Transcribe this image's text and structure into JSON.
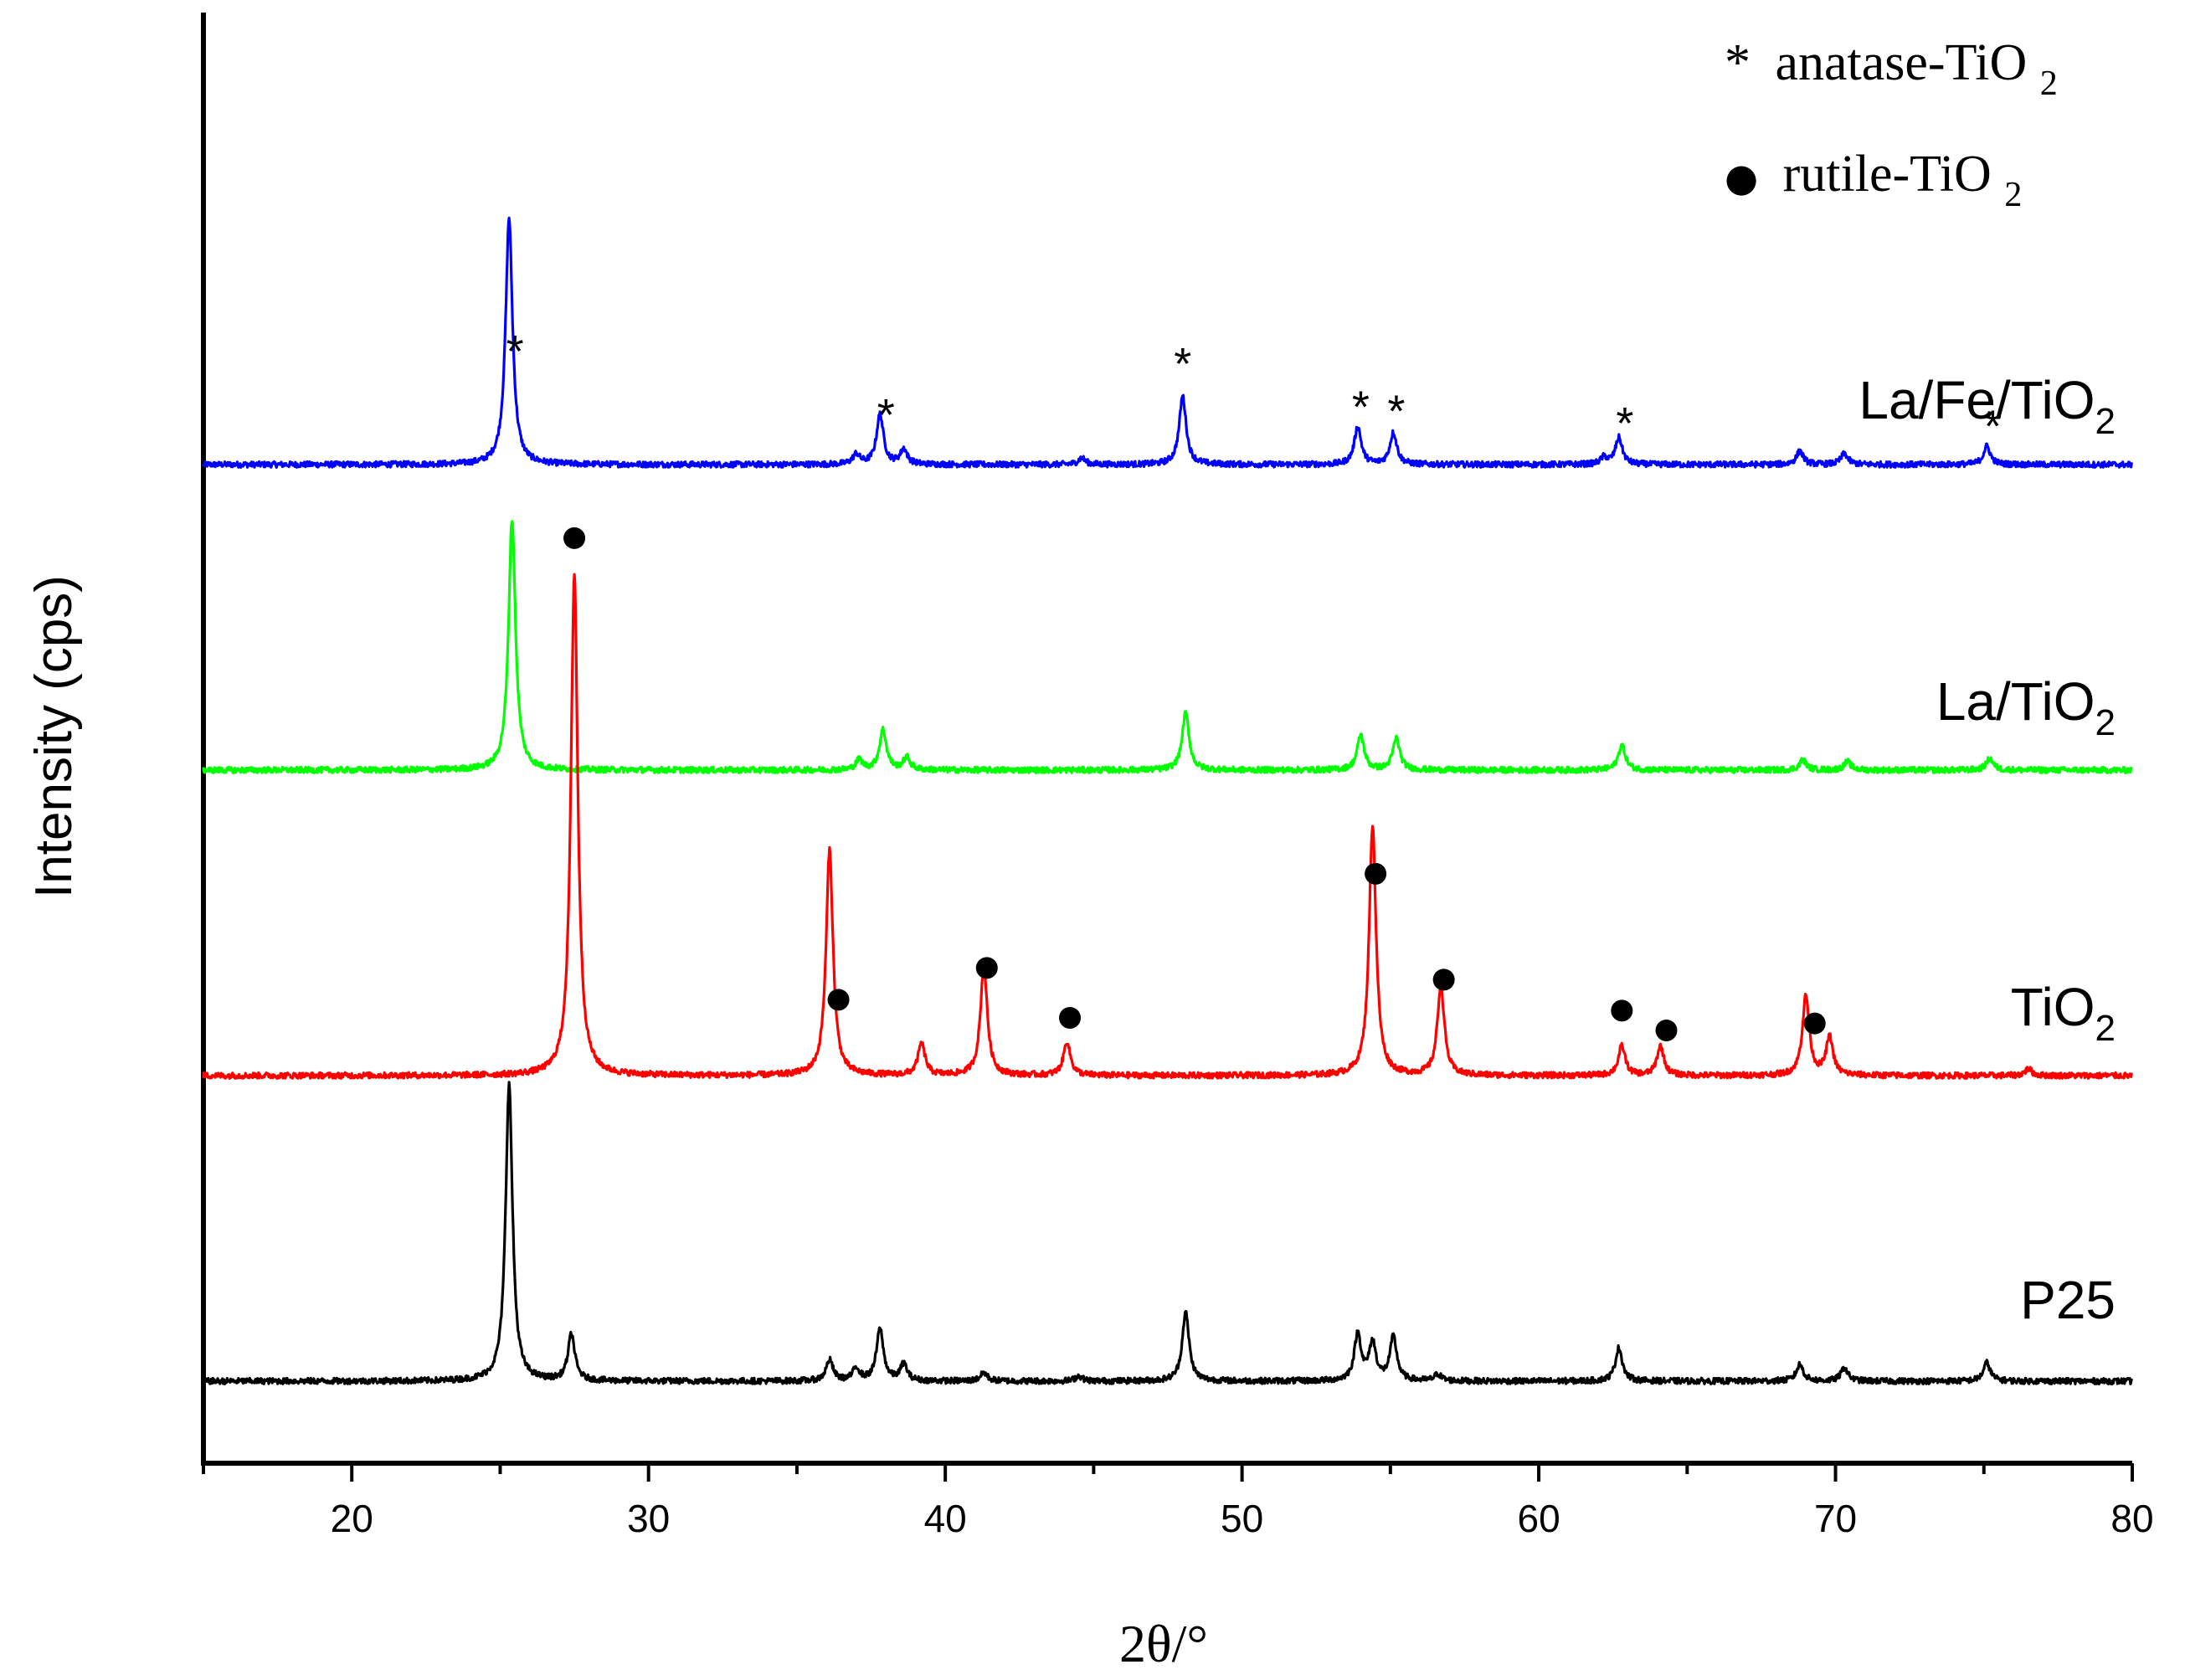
{
  "chart_data": {
    "type": "line",
    "xlabel": "2θ/°",
    "ylabel": "Intensity (cps)",
    "xlim": [
      15,
      80
    ],
    "x_ticks": [
      "20",
      "30",
      "40",
      "50",
      "60",
      "70",
      "80"
    ],
    "legend": {
      "placement": "top-right",
      "entries": [
        {
          "symbol": "*",
          "name": "anatase-TiO",
          "subscript": "2"
        },
        {
          "symbol": "●",
          "name": "rutile-TiO",
          "subscript": "2"
        }
      ]
    },
    "series": [
      {
        "name": "La/Fe/TiO",
        "subscript": "2",
        "color": "#0000ff",
        "peaks": [
          [
            25.3,
            295
          ],
          [
            37.0,
            12
          ],
          [
            37.8,
            60
          ],
          [
            38.6,
            18
          ],
          [
            44.6,
            8
          ],
          [
            48.0,
            82
          ],
          [
            53.9,
            45
          ],
          [
            55.1,
            38
          ],
          [
            62.2,
            8
          ],
          [
            62.7,
            32
          ],
          [
            68.8,
            16
          ],
          [
            70.3,
            13
          ],
          [
            75.1,
            22
          ]
        ],
        "markers": [
          {
            "type": "*",
            "x": 25.5
          },
          {
            "type": "*",
            "x": 38.0
          },
          {
            "type": "*",
            "x": 48.0
          },
          {
            "type": "*",
            "x": 54.0
          },
          {
            "type": "*",
            "x": 55.2
          },
          {
            "type": "*",
            "x": 62.9
          },
          {
            "type": "*",
            "x": 75.3
          }
        ]
      },
      {
        "name": "La/TiO",
        "subscript": "2",
        "color": "#00ff00",
        "peaks": [
          [
            25.4,
            300
          ],
          [
            37.1,
            12
          ],
          [
            37.9,
            48
          ],
          [
            38.7,
            15
          ],
          [
            48.1,
            68
          ],
          [
            54.0,
            42
          ],
          [
            55.2,
            38
          ],
          [
            62.8,
            30
          ],
          [
            68.9,
            12
          ],
          [
            70.4,
            10
          ],
          [
            75.2,
            14
          ]
        ],
        "markers": []
      },
      {
        "name": "TiO",
        "subscript": "2",
        "color": "#ff0000",
        "peaks": [
          [
            27.5,
            600
          ],
          [
            36.1,
            270
          ],
          [
            39.2,
            38
          ],
          [
            41.3,
            130
          ],
          [
            44.1,
            40
          ],
          [
            54.4,
            300
          ],
          [
            56.7,
            108
          ],
          [
            62.8,
            35
          ],
          [
            64.1,
            35
          ],
          [
            69.0,
            95
          ],
          [
            69.8,
            45
          ],
          [
            76.5,
            8
          ]
        ],
        "markers": [
          {
            "type": "●",
            "x": 27.5
          },
          {
            "type": "●",
            "x": 36.4
          },
          {
            "type": "●",
            "x": 41.4
          },
          {
            "type": "●",
            "x": 44.2
          },
          {
            "type": "●",
            "x": 54.5
          },
          {
            "type": "●",
            "x": 56.8
          },
          {
            "type": "●",
            "x": 62.8
          },
          {
            "type": "●",
            "x": 64.3
          },
          {
            "type": "●",
            "x": 69.3
          }
        ]
      },
      {
        "name": "P25",
        "subscript": "",
        "color": "#000000",
        "peaks": [
          [
            25.3,
            355
          ],
          [
            27.4,
            55
          ],
          [
            36.1,
            25
          ],
          [
            37.0,
            15
          ],
          [
            37.8,
            62
          ],
          [
            38.6,
            20
          ],
          [
            41.3,
            10
          ],
          [
            44.5,
            6
          ],
          [
            48.1,
            82
          ],
          [
            53.9,
            55
          ],
          [
            54.4,
            45
          ],
          [
            55.1,
            52
          ],
          [
            56.6,
            8
          ],
          [
            62.7,
            40
          ],
          [
            68.8,
            20
          ],
          [
            70.3,
            16
          ],
          [
            75.1,
            22
          ]
        ],
        "markers": []
      }
    ]
  }
}
